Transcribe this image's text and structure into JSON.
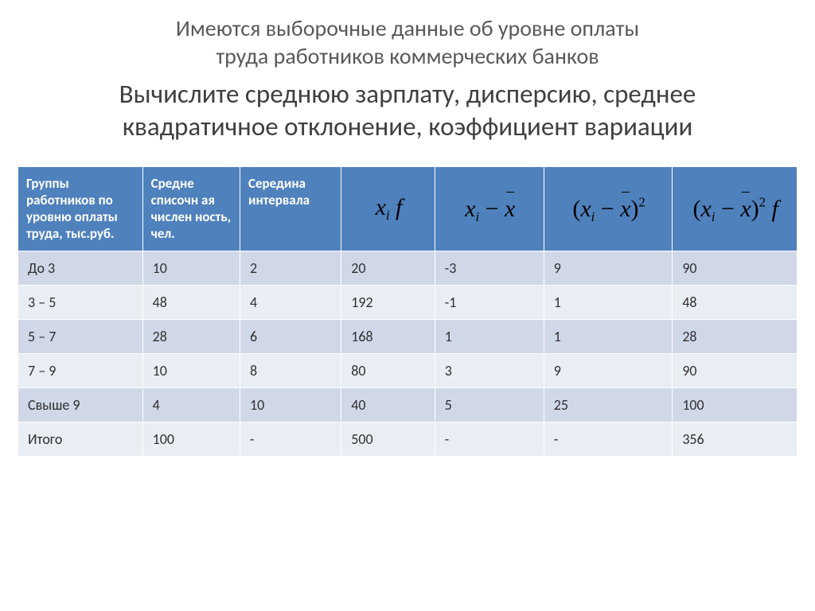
{
  "heading": {
    "line1": "Имеются выборочные данные об уровне оплаты",
    "line2": "труда работников коммерческих банков",
    "line3": "Вычислите среднюю зарплату, дисперсию, среднее",
    "line4": "квадратичное отклонение, коэффициент вариации"
  },
  "table": {
    "header_bg": "#4f81bd",
    "header_fg": "#ffffff",
    "band_a_bg": "#d0d8e8",
    "band_b_bg": "#e9edf4",
    "border_color": "#ffffff",
    "header_fontsize": 17,
    "cell_fontsize": 18,
    "formula_fontsize": 30,
    "columns": [
      "Группы работников по уровню оплаты труда, тыс.руб.",
      "Средне списочн ая числен ность, чел.",
      "Середина интервала",
      "x_i f",
      "x_i − x̄",
      "(x_i − x̄)^2",
      "(x_i − x̄)^2 f"
    ],
    "col_widths_pct": [
      16,
      12.5,
      13,
      12,
      14,
      16.5,
      16
    ],
    "rows": [
      {
        "cells": [
          "До 3",
          "10",
          "2",
          "20",
          "-3",
          "9",
          "90"
        ],
        "band": "a"
      },
      {
        "cells": [
          "3 – 5",
          "48",
          "4",
          "192",
          "-1",
          "1",
          "48"
        ],
        "band": "b"
      },
      {
        "cells": [
          "5 – 7",
          "28",
          "6",
          "168",
          "1",
          "1",
          "28"
        ],
        "band": "a"
      },
      {
        "cells": [
          "7 – 9",
          "10",
          "8",
          "80",
          "3",
          "9",
          "90"
        ],
        "band": "b"
      },
      {
        "cells": [
          "Свыше 9",
          "4",
          "10",
          "40",
          "5",
          "25",
          "100"
        ],
        "band": "a"
      },
      {
        "cells": [
          "Итого",
          "100",
          "-",
          "500",
          "-",
          "-",
          "356"
        ],
        "band": "b"
      }
    ]
  }
}
